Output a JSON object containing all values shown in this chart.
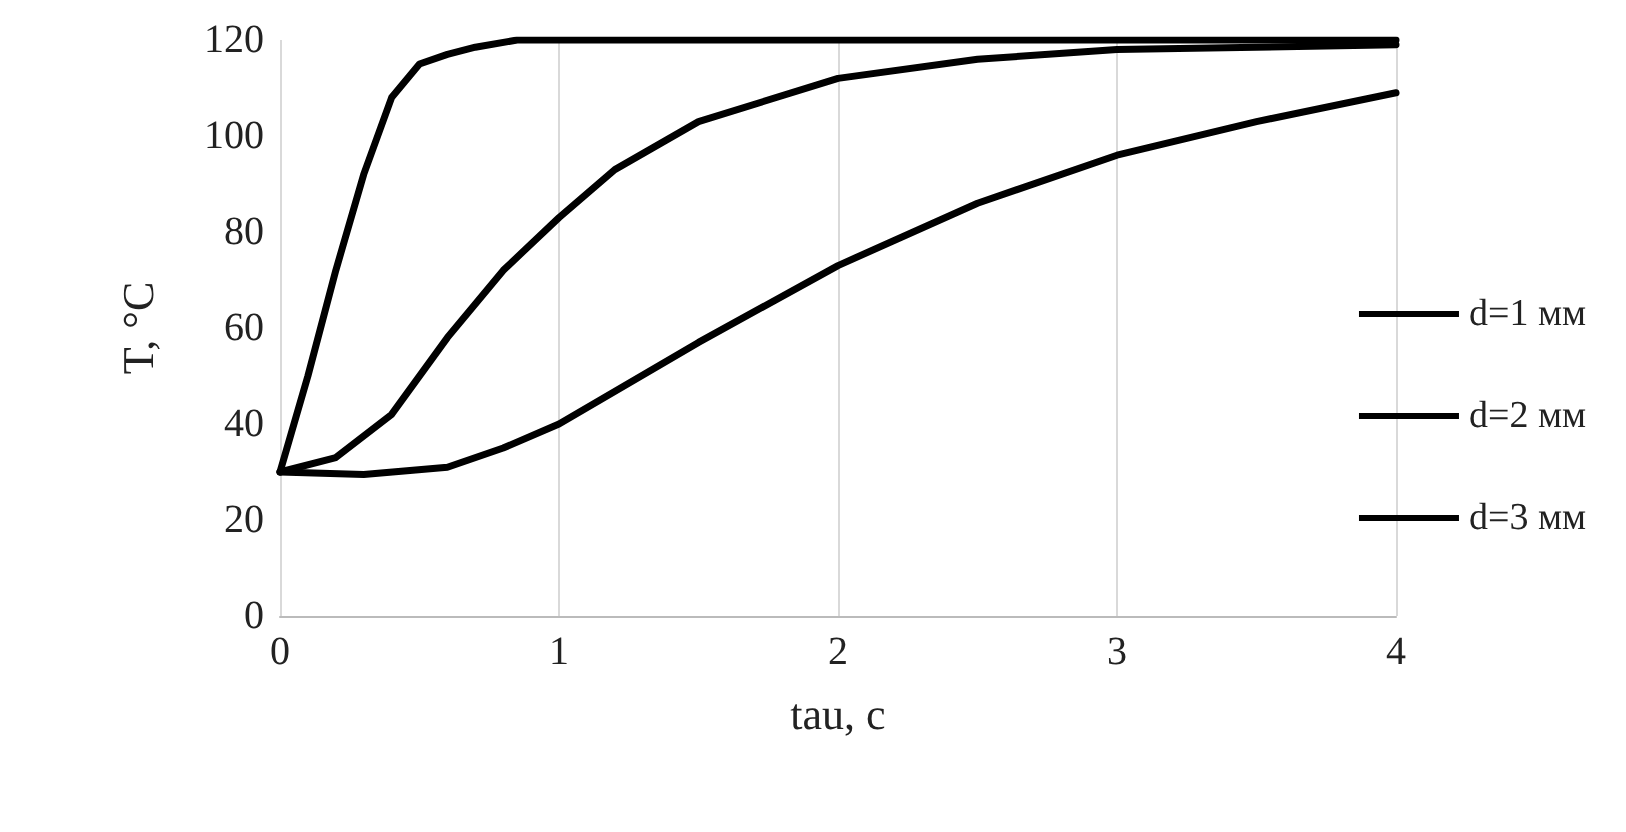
{
  "chart_data": {
    "type": "line",
    "xlabel": "tau, c",
    "ylabel": "T, °C",
    "xlim": [
      0,
      4
    ],
    "xticks": [
      0,
      1,
      2,
      3,
      4
    ],
    "ylim": [
      0,
      120
    ],
    "yticks": [
      0,
      20,
      40,
      60,
      80,
      100,
      120
    ],
    "grid": "x",
    "legend": "right",
    "marker": "none",
    "line_style": "solid",
    "series": [
      {
        "name": "d=1 мм",
        "color": "#000000",
        "x": [
          0,
          0.1,
          0.2,
          0.3,
          0.4,
          0.5,
          0.6,
          0.7,
          0.85,
          1,
          2,
          3,
          4
        ],
        "values": [
          30,
          50,
          72,
          92,
          108,
          115,
          117,
          118.5,
          120,
          120,
          120,
          120,
          120
        ]
      },
      {
        "name": "d=2 мм",
        "color": "#000000",
        "x": [
          0,
          0.2,
          0.4,
          0.6,
          0.8,
          1,
          1.2,
          1.5,
          2,
          2.5,
          3,
          3.5,
          4
        ],
        "values": [
          30,
          33,
          42,
          58,
          72,
          83,
          93,
          103,
          112,
          116,
          118,
          118.5,
          119
        ]
      },
      {
        "name": "d=3 мм",
        "color": "#000000",
        "x": [
          0,
          0.3,
          0.6,
          0.8,
          1,
          1.5,
          2,
          2.5,
          3,
          3.5,
          4
        ],
        "values": [
          30,
          29.5,
          31,
          35,
          40,
          57,
          73,
          86,
          96,
          103,
          109
        ]
      }
    ]
  }
}
